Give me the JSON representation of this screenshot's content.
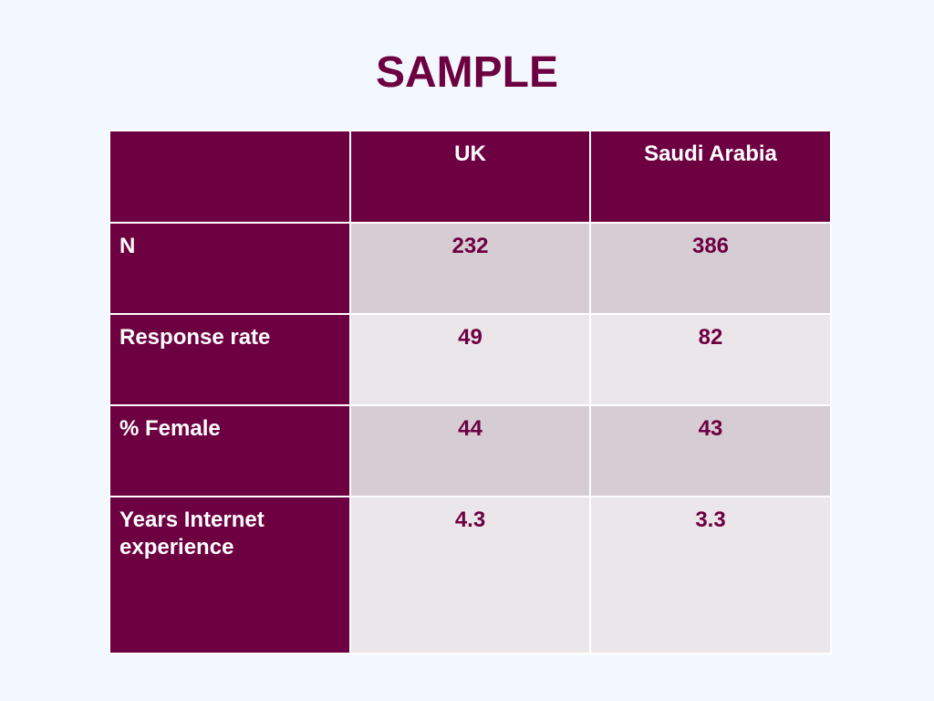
{
  "title": "SAMPLE",
  "table": {
    "headers": [
      "",
      "UK",
      "Saudi Arabia"
    ],
    "rows": [
      {
        "label": "N",
        "uk": "232",
        "saudi": "386"
      },
      {
        "label": "Response rate",
        "uk": "49",
        "saudi": "82"
      },
      {
        "label": "% Female",
        "uk": "44",
        "saudi": "43"
      },
      {
        "label": "Years Internet experience",
        "uk": "4.3",
        "saudi": "3.3"
      }
    ]
  },
  "colors": {
    "accent": "#6d0041",
    "background": "#f2f8fd",
    "row_dark": "#d6ccd4",
    "row_light": "#ebe6ea"
  }
}
